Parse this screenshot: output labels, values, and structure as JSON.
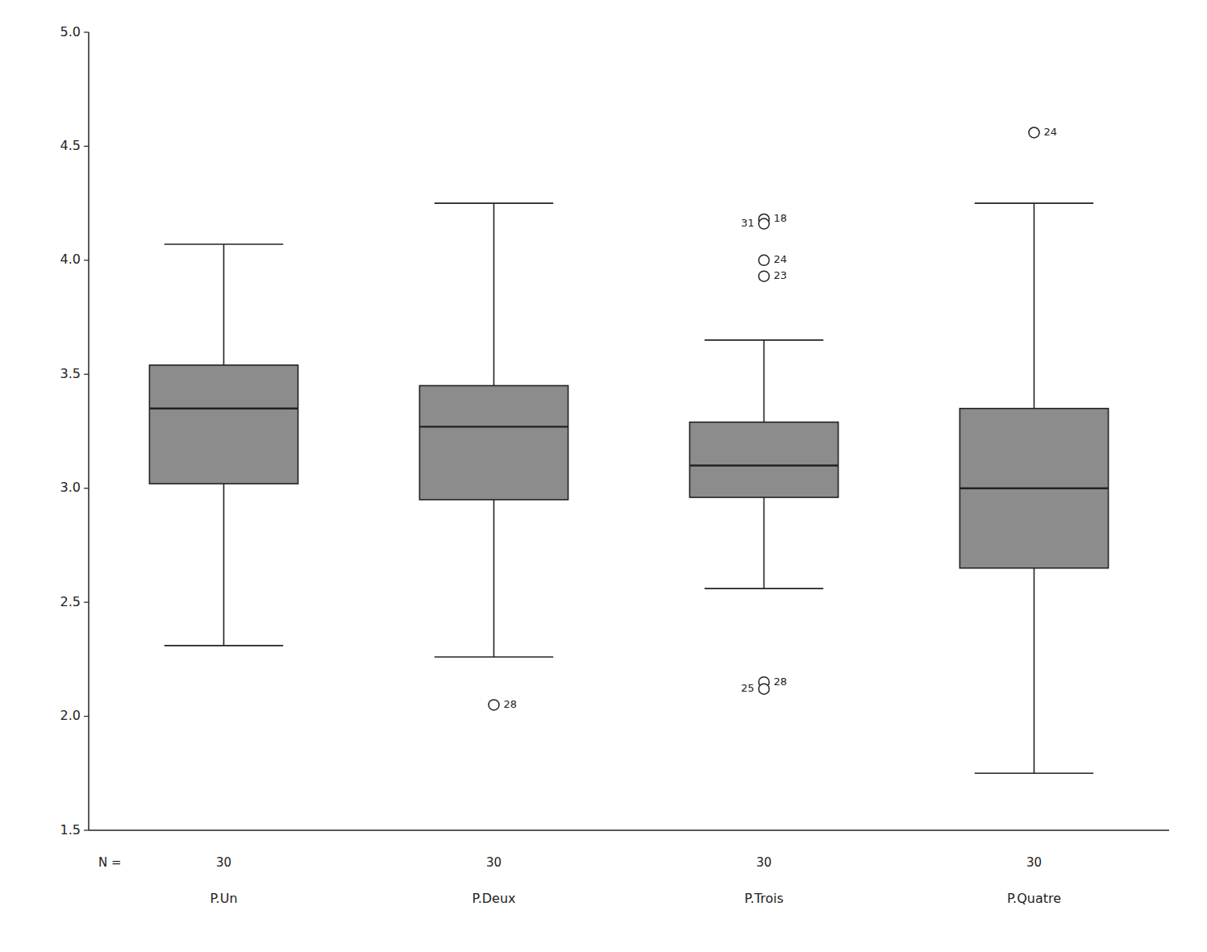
{
  "chart_data": {
    "type": "box",
    "categories": [
      "P.Un",
      "P.Deux",
      "P.Trois",
      "P.Quatre"
    ],
    "n_label": "N =",
    "n_values": [
      30,
      30,
      30,
      30
    ],
    "boxes": [
      {
        "q1": 3.02,
        "median": 3.35,
        "q3": 3.54,
        "whisker_low": 2.31,
        "whisker_high": 4.07,
        "outliers": [],
        "outlier_labels": []
      },
      {
        "q1": 2.95,
        "median": 3.27,
        "q3": 3.45,
        "whisker_low": 2.26,
        "whisker_high": 4.25,
        "outliers": [
          2.05
        ],
        "outlier_labels": [
          "28"
        ]
      },
      {
        "q1": 2.96,
        "median": 3.1,
        "q3": 3.29,
        "whisker_low": 2.56,
        "whisker_high": 3.65,
        "outliers": [
          4.18,
          4.16,
          4.0,
          3.93,
          2.15,
          2.12
        ],
        "outlier_labels": [
          "18",
          "31",
          "24",
          "23",
          "28",
          "25"
        ]
      },
      {
        "q1": 2.65,
        "median": 3.0,
        "q3": 3.35,
        "whisker_low": 1.75,
        "whisker_high": 4.25,
        "outliers": [
          4.56
        ],
        "outlier_labels": [
          "24"
        ]
      }
    ],
    "color": "#8c8c8c",
    "ylim": [
      1.5,
      5.0
    ],
    "yticks": [
      1.5,
      {
        "value": 2,
        "label": "2.0"
      },
      2.5,
      {
        "value": 3,
        "label": "3.0"
      },
      3.5,
      {
        "value": 4,
        "label": "4.0"
      },
      4.5,
      {
        "value": 5,
        "label": "5.0"
      }
    ],
    "grid": false
  }
}
